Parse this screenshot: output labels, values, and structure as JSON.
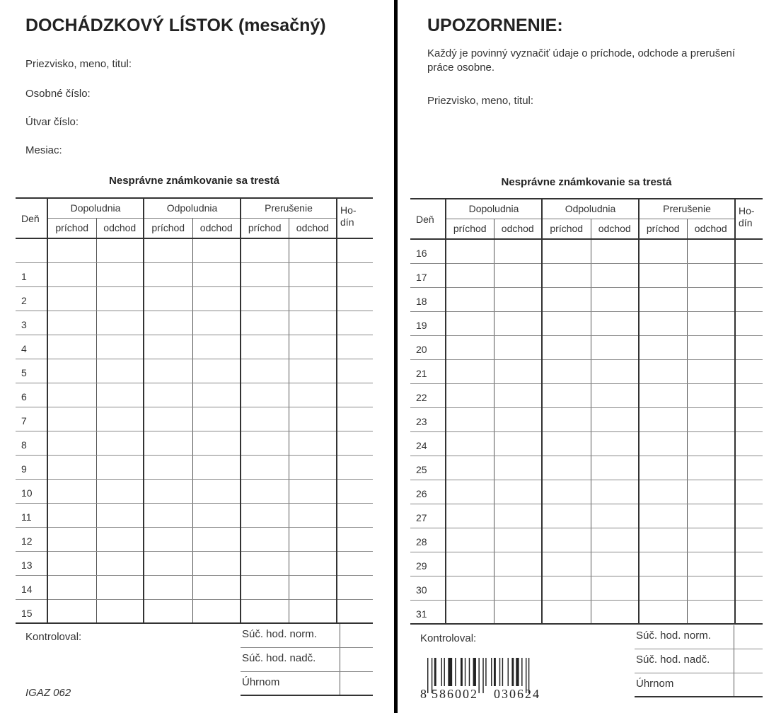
{
  "left": {
    "title": "DOCHÁDZKOVÝ LÍSTOK (mesačný)",
    "fields": [
      "Priezvisko, meno, titul:",
      "Osobné číslo:",
      "Útvar číslo:",
      "Mesiac:"
    ],
    "warning_heading": "Nesprávne známkovanie sa trestá",
    "days": [
      "",
      "1",
      "2",
      "3",
      "4",
      "5",
      "6",
      "7",
      "8",
      "9",
      "10",
      "11",
      "12",
      "13",
      "14",
      "15"
    ],
    "checked_by": "Kontroloval:",
    "form_code": "IGAZ 062"
  },
  "right": {
    "title": "UPOZORNENIE:",
    "notice": "Každý je povinný vyznačiť údaje o príchode, odchode a prerušení práce osobne.",
    "field": "Priezvisko, meno, titul:",
    "warning_heading": "Nesprávne známkovanie sa trestá",
    "days": [
      "16",
      "17",
      "18",
      "19",
      "20",
      "21",
      "22",
      "23",
      "24",
      "25",
      "26",
      "27",
      "28",
      "29",
      "30",
      "31"
    ],
    "checked_by": "Kontroloval:",
    "barcode_number": "8586002030624",
    "barcode_left": "8",
    "barcode_mid1": "586002",
    "barcode_mid2": "030624"
  },
  "table_header": {
    "day": "Deň",
    "groups": [
      "Dopoludnia",
      "Odpoludnia",
      "Prerušenie"
    ],
    "arrival": "príchod",
    "departure": "odchod",
    "hours": "Ho-dín"
  },
  "summary": [
    "Súč. hod. norm.",
    "Súč. hod. nadč.",
    "Úhrnom"
  ]
}
